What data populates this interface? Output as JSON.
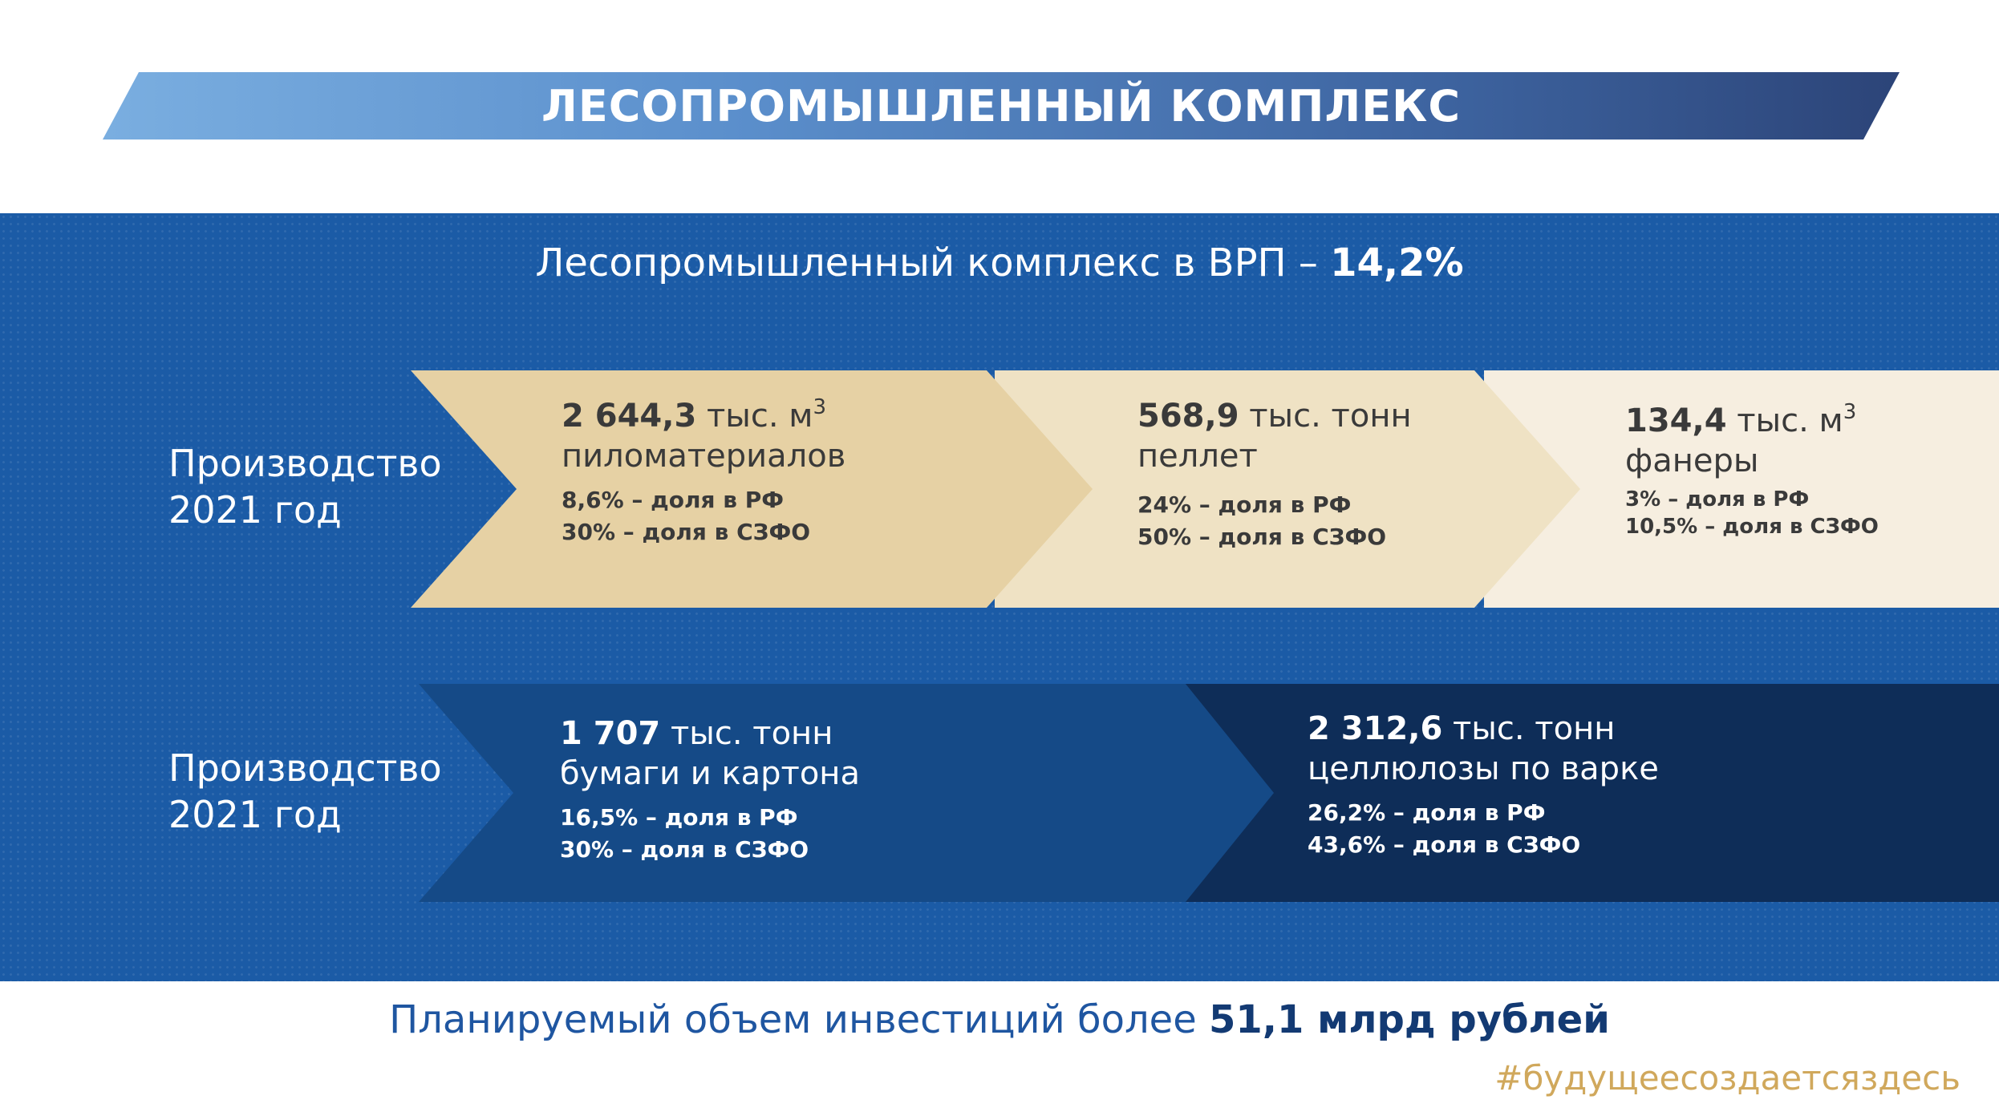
{
  "title": "ЛЕСОПРОМЫШЛЕННЫЙ КОМПЛЕКС",
  "vrp": {
    "text": "Лесопромышленный комплекс в ВРП – ",
    "value": "14,2%"
  },
  "row1": {
    "label_line1": "Производство",
    "label_line2": "2021 год",
    "items": [
      {
        "value": "2 644,3",
        "unit": " тыс. м",
        "sup": "3",
        "product": "пиломатериалов",
        "share_rf": "8,6% – доля в РФ",
        "share_szfo": "30% – доля в СЗФО"
      },
      {
        "value": "568,9",
        "unit": " тыс. тонн",
        "sup": "",
        "product": "пеллет",
        "share_rf": "24% – доля в РФ",
        "share_szfo": "50% – доля в СЗФО"
      },
      {
        "value": "134,4",
        "unit": " тыс. м",
        "sup": "3",
        "product": "фанеры",
        "share_rf": "3% – доля в РФ",
        "share_szfo": "10,5% – доля в СЗФО"
      }
    ]
  },
  "row2": {
    "label_line1": "Производство",
    "label_line2": "2021 год",
    "items": [
      {
        "value": "1 707",
        "unit": " тыс. тонн",
        "product": "бумаги и картона",
        "share_rf": "16,5% – доля в РФ",
        "share_szfo": "30% – доля в СЗФО"
      },
      {
        "value": "2 312,6",
        "unit": " тыс. тонн",
        "product": "целлюлозы по варке",
        "share_rf": "26,2% – доля в РФ",
        "share_szfo": "43,6% – доля в СЗФО"
      }
    ]
  },
  "investment": {
    "text": "Планируемый объем инвестиций более ",
    "value": "51,1 млрд рублей"
  },
  "hashtag": "#будущеесоздаетсяздесь",
  "colors": {
    "panel_blue": "#1b5ba6",
    "chevron_tan_1": "#e6d1a4",
    "chevron_tan_2": "#efe2c4",
    "chevron_tan_3": "#f6eee0",
    "chevron_navy_1": "#154a87",
    "chevron_navy_2": "#0e2d58",
    "hashtag_gold": "#d0a85c"
  }
}
